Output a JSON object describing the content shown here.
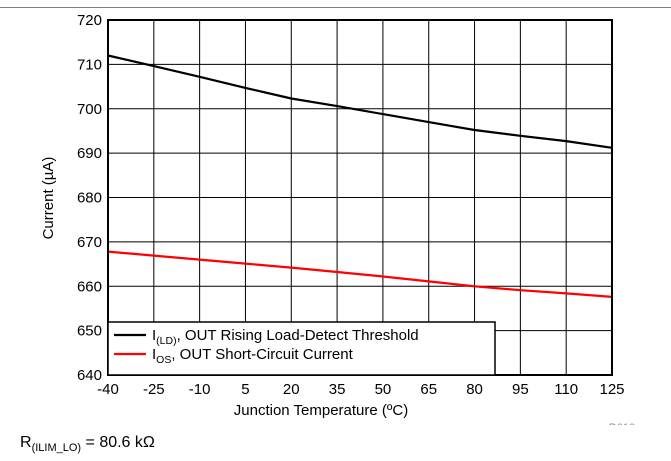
{
  "chart_data": {
    "type": "line",
    "xlabel": "Junction Temperature (ºC)",
    "ylabel": "Current (µA)",
    "xlim": [
      -40,
      125
    ],
    "ylim": [
      640,
      720
    ],
    "xticks": [
      -40,
      -25,
      -10,
      5,
      20,
      35,
      50,
      65,
      80,
      95,
      110,
      125
    ],
    "yticks": [
      640,
      650,
      660,
      670,
      680,
      690,
      700,
      710,
      720
    ],
    "grid": true,
    "legend_placement": "bottom-left",
    "series": [
      {
        "name": "I(LD), OUT Rising Load-Detect Threshold",
        "name_main": "I",
        "name_sub": "(LD)",
        "name_rest": ", OUT Rising Load-Detect Threshold",
        "color": "#000000",
        "x": [
          -40,
          -25,
          -10,
          5,
          20,
          35,
          50,
          65,
          80,
          95,
          110,
          125
        ],
        "y": [
          712,
          709.6,
          707.2,
          704.7,
          702.3,
          700.6,
          698.8,
          697.0,
          695.2,
          693.9,
          692.7,
          691.2
        ]
      },
      {
        "name": "IOS, OUT Short-Circuit Current",
        "name_main": "I",
        "name_sub": "OS",
        "name_rest": ", OUT Short-Circuit Current",
        "color": "#ff0000",
        "x": [
          -40,
          -25,
          -10,
          5,
          20,
          35,
          50,
          65,
          80,
          95,
          110,
          125
        ],
        "y": [
          667.8,
          666.9,
          666.0,
          665.1,
          664.2,
          663.2,
          662.2,
          661.1,
          660.0,
          659.1,
          658.4,
          657.6
        ]
      }
    ]
  },
  "figure_id": "D010",
  "footnote": {
    "symbol": "R",
    "subscript": "(ILIM_LO)",
    "text": " = 80.6 kΩ"
  }
}
